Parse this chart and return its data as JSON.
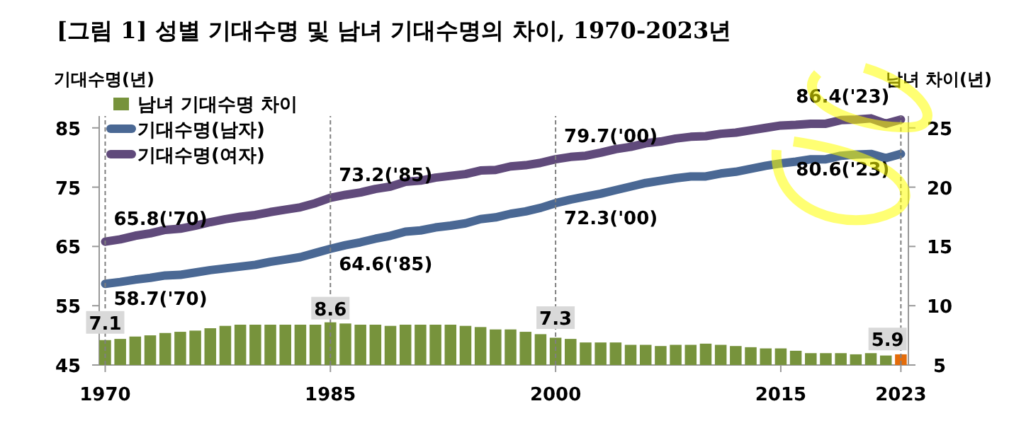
{
  "chart_data": {
    "type": "bar",
    "title": "[그림 1] 성별 기대수명 및 남녀 기대수명의 차이, 1970-2023년",
    "ylabel": "기대수명(년)",
    "y2label": "남녀 차이(년)",
    "x": [
      1970,
      1971,
      1972,
      1973,
      1974,
      1975,
      1976,
      1977,
      1978,
      1979,
      1980,
      1981,
      1982,
      1983,
      1984,
      1985,
      1986,
      1987,
      1988,
      1989,
      1990,
      1991,
      1992,
      1993,
      1994,
      1995,
      1996,
      1997,
      1998,
      1999,
      2000,
      2001,
      2002,
      2003,
      2004,
      2005,
      2006,
      2007,
      2008,
      2009,
      2010,
      2011,
      2012,
      2013,
      2014,
      2015,
      2016,
      2017,
      2018,
      2019,
      2020,
      2021,
      2022,
      2023
    ],
    "xlim": [
      1969.6,
      2023.5
    ],
    "xticks": [
      1970,
      1985,
      2000,
      2015,
      2023
    ],
    "ylim": [
      45,
      87
    ],
    "yticks": [
      45,
      55,
      65,
      75,
      85
    ],
    "y2lim": [
      5,
      26
    ],
    "y2ticks": [
      5,
      10,
      15,
      20,
      25
    ],
    "legend": "top left",
    "series": [
      {
        "name": "남녀 기대수명 차이",
        "type": "bar",
        "axis": "y2",
        "color": "#77933c",
        "colors": [
          "#77933c",
          "#77933c",
          "#77933c",
          "#77933c",
          "#77933c",
          "#77933c",
          "#77933c",
          "#77933c",
          "#77933c",
          "#77933c",
          "#77933c",
          "#77933c",
          "#77933c",
          "#77933c",
          "#77933c",
          "#77933c",
          "#77933c",
          "#77933c",
          "#77933c",
          "#77933c",
          "#77933c",
          "#77933c",
          "#77933c",
          "#77933c",
          "#77933c",
          "#77933c",
          "#77933c",
          "#77933c",
          "#77933c",
          "#77933c",
          "#77933c",
          "#77933c",
          "#77933c",
          "#77933c",
          "#77933c",
          "#77933c",
          "#77933c",
          "#77933c",
          "#77933c",
          "#77933c",
          "#77933c",
          "#77933c",
          "#77933c",
          "#77933c",
          "#77933c",
          "#77933c",
          "#77933c",
          "#77933c",
          "#77933c",
          "#77933c",
          "#77933c",
          "#77933c",
          "#77933c",
          "#e46c0a"
        ],
        "values": [
          7.1,
          7.2,
          7.4,
          7.5,
          7.7,
          7.8,
          7.9,
          8.1,
          8.3,
          8.4,
          8.4,
          8.4,
          8.4,
          8.4,
          8.4,
          8.6,
          8.5,
          8.4,
          8.4,
          8.3,
          8.4,
          8.4,
          8.4,
          8.4,
          8.3,
          8.2,
          8.0,
          8.0,
          7.8,
          7.6,
          7.3,
          7.2,
          6.9,
          6.9,
          6.9,
          6.7,
          6.7,
          6.6,
          6.7,
          6.7,
          6.8,
          6.7,
          6.6,
          6.5,
          6.4,
          6.4,
          6.2,
          6.0,
          6.0,
          6.0,
          5.9,
          6.0,
          5.8,
          5.9
        ],
        "value_labels": [
          "7.1",
          null,
          null,
          null,
          null,
          null,
          null,
          null,
          null,
          null,
          null,
          null,
          null,
          null,
          null,
          "8.6",
          null,
          null,
          null,
          null,
          null,
          null,
          null,
          null,
          null,
          null,
          null,
          null,
          null,
          null,
          "7.3",
          null,
          null,
          null,
          null,
          null,
          null,
          null,
          null,
          null,
          null,
          null,
          null,
          null,
          null,
          null,
          null,
          null,
          null,
          null,
          null,
          null,
          null,
          "5.9"
        ]
      },
      {
        "name": "기대수명(남자)",
        "type": "line",
        "color": "#4a6894",
        "values": [
          58.7,
          59.0,
          59.4,
          59.7,
          60.1,
          60.2,
          60.6,
          61.0,
          61.3,
          61.6,
          61.9,
          62.4,
          62.8,
          63.2,
          63.9,
          64.6,
          65.2,
          65.7,
          66.3,
          66.8,
          67.5,
          67.7,
          68.2,
          68.5,
          68.9,
          69.6,
          69.9,
          70.5,
          70.9,
          71.5,
          72.3,
          72.9,
          73.4,
          73.9,
          74.5,
          75.1,
          75.7,
          76.1,
          76.5,
          76.8,
          76.8,
          77.3,
          77.6,
          78.1,
          78.6,
          79.0,
          79.3,
          79.7,
          79.7,
          80.3,
          80.5,
          80.6,
          79.9,
          80.6
        ]
      },
      {
        "name": "기대수명(여자)",
        "type": "line",
        "color": "#604a7b",
        "values": [
          65.8,
          66.2,
          66.8,
          67.2,
          67.8,
          68.0,
          68.5,
          69.1,
          69.6,
          70.0,
          70.3,
          70.8,
          71.2,
          71.6,
          72.3,
          73.2,
          73.7,
          74.1,
          74.7,
          75.1,
          75.9,
          76.1,
          76.6,
          76.9,
          77.2,
          77.8,
          77.9,
          78.5,
          78.7,
          79.1,
          79.7,
          80.1,
          80.3,
          80.8,
          81.4,
          81.8,
          82.4,
          82.7,
          83.2,
          83.5,
          83.6,
          84.0,
          84.2,
          84.6,
          85.0,
          85.4,
          85.5,
          85.7,
          85.7,
          86.3,
          86.4,
          86.6,
          85.7,
          86.4
        ]
      }
    ],
    "ref_lines": [
      {
        "axis": "x",
        "value": 1970,
        "line_style": "dashed",
        "color": "#808080"
      },
      {
        "axis": "x",
        "value": 1985,
        "line_style": "dashed",
        "color": "#808080"
      },
      {
        "axis": "x",
        "value": 2000,
        "line_style": "dashed",
        "color": "#808080"
      },
      {
        "axis": "x",
        "value": 2023,
        "line_style": "dashed",
        "color": "#808080"
      }
    ],
    "annotations": [
      {
        "text": "65.8('70)",
        "x": 1970,
        "y": 65.8
      },
      {
        "text": "58.7('70)",
        "x": 1970,
        "y": 58.7
      },
      {
        "text": "73.2('85)",
        "x": 1985,
        "y": 73.2
      },
      {
        "text": "64.6('85)",
        "x": 1985,
        "y": 64.6
      },
      {
        "text": "79.7('00)",
        "x": 2000,
        "y": 79.7
      },
      {
        "text": "72.3('00)",
        "x": 2000,
        "y": 72.3
      },
      {
        "text": "86.4('23)",
        "x": 2023,
        "y": 86.4
      },
      {
        "text": "80.6('23)",
        "x": 2023,
        "y": 80.6
      }
    ]
  }
}
